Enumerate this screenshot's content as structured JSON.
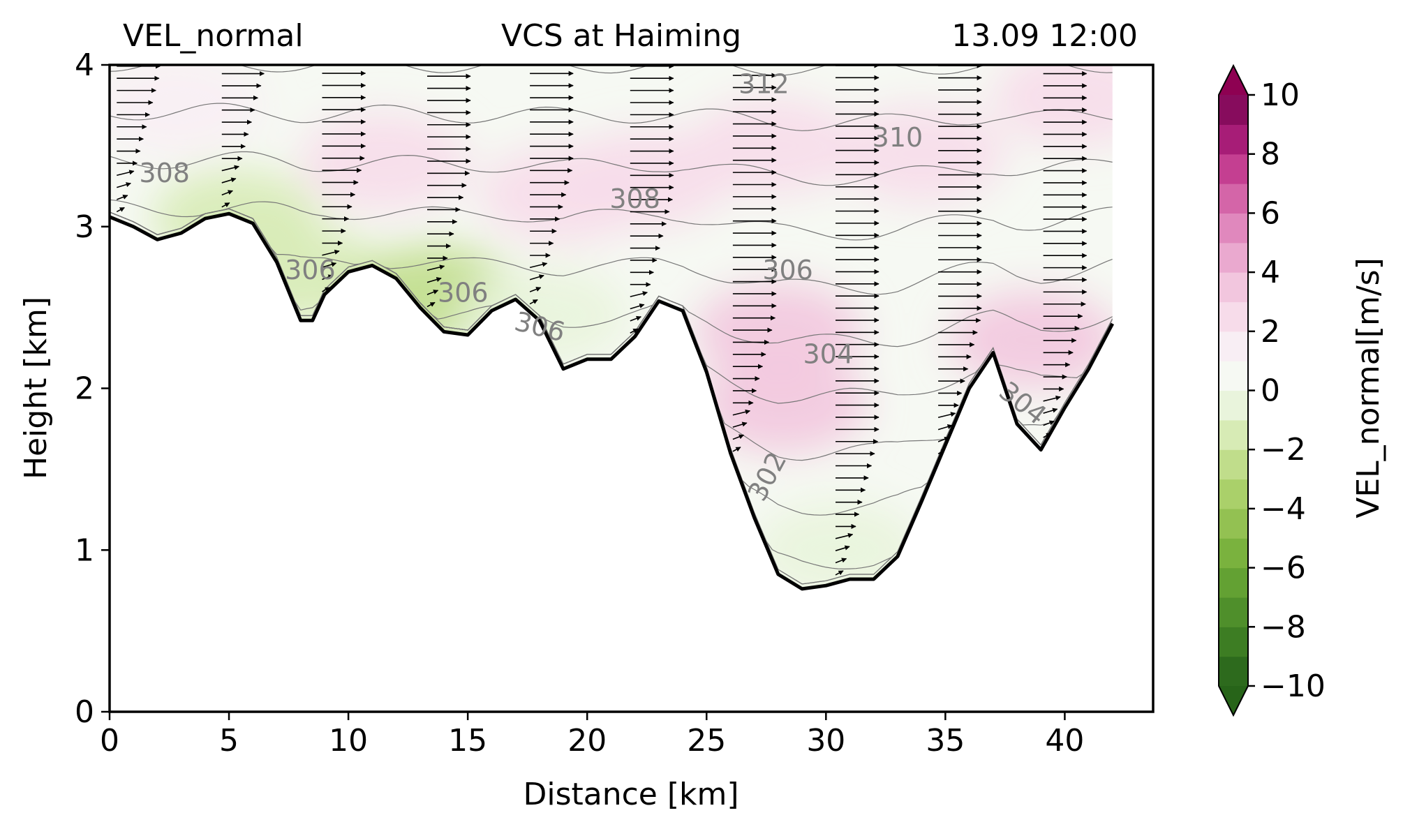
{
  "header": {
    "left": "VEL_normal",
    "center": "VCS at Haiming",
    "right": "13.09 12:00"
  },
  "chart_data": {
    "type": "heatmap",
    "title": "VCS at Haiming",
    "xlabel": "Distance [km]",
    "ylabel": "Height [km]",
    "xlim": [
      0,
      43.7
    ],
    "ylim": [
      0,
      4
    ],
    "x_ticks": [
      0,
      5,
      10,
      15,
      20,
      25,
      30,
      35,
      40
    ],
    "y_ticks": [
      0,
      1,
      2,
      3,
      4
    ],
    "colorbar": {
      "label": "VEL_normal[m/s]",
      "range": [
        -10,
        10
      ],
      "step": 1,
      "ticks": [
        -10,
        -8,
        -6,
        -4,
        -2,
        0,
        2,
        4,
        6,
        8,
        10
      ],
      "tick_labels": [
        "−10",
        "−8",
        "−6",
        "−4",
        "−2",
        "0",
        "2",
        "4",
        "6",
        "8",
        "10"
      ],
      "extend": "both",
      "colors": [
        "#2d6a1d",
        "#3d7d23",
        "#4f8f2b",
        "#63a133",
        "#7ab23e",
        "#93c152",
        "#aad06a",
        "#c0dd8b",
        "#d7ebb5",
        "#e9f4dc",
        "#f6f9f3",
        "#f8eef4",
        "#f7dcea",
        "#f2c6de",
        "#eaa9cf",
        "#e088bd",
        "#d465a8",
        "#c43f91",
        "#a71d77",
        "#870c5d"
      ],
      "under_color": "#276419",
      "over_color": "#8e0152"
    },
    "terrain": {
      "x": [
        0,
        1,
        2,
        3,
        4,
        5,
        6,
        7,
        8,
        8.5,
        9,
        10,
        11,
        12,
        13,
        14,
        15,
        16,
        17,
        18,
        19,
        20,
        21,
        22,
        23,
        24,
        25,
        26,
        27,
        28,
        29,
        30,
        31,
        32,
        33,
        34,
        35,
        36,
        37,
        38,
        39,
        40,
        41,
        42
      ],
      "y": [
        3.06,
        3.0,
        2.92,
        2.96,
        3.05,
        3.08,
        3.02,
        2.78,
        2.42,
        2.42,
        2.58,
        2.72,
        2.76,
        2.68,
        2.5,
        2.35,
        2.33,
        2.48,
        2.55,
        2.42,
        2.12,
        2.18,
        2.18,
        2.32,
        2.54,
        2.48,
        2.1,
        1.6,
        1.2,
        0.85,
        0.76,
        0.78,
        0.82,
        0.82,
        0.96,
        1.3,
        1.65,
        2.0,
        2.22,
        1.78,
        1.62,
        1.88,
        2.12,
        2.4
      ]
    },
    "field_patches": [
      {
        "x": 2.8,
        "y": 3.75,
        "value": 1
      },
      {
        "x": 5.3,
        "y": 3.05,
        "value": -2
      },
      {
        "x": 8.0,
        "y": 2.7,
        "value": -2
      },
      {
        "x": 13.6,
        "y": 2.58,
        "value": -3
      },
      {
        "x": 18.2,
        "y": 2.45,
        "value": -1
      },
      {
        "x": 11.5,
        "y": 3.4,
        "value": 2
      },
      {
        "x": 19.0,
        "y": 3.2,
        "value": 2
      },
      {
        "x": 22.5,
        "y": 3.3,
        "value": 2
      },
      {
        "x": 28.0,
        "y": 2.35,
        "value": 3
      },
      {
        "x": 28.2,
        "y": 1.9,
        "value": 3
      },
      {
        "x": 27.8,
        "y": 3.5,
        "value": 2
      },
      {
        "x": 34.0,
        "y": 3.45,
        "value": 2
      },
      {
        "x": 38.7,
        "y": 2.3,
        "value": 3
      },
      {
        "x": 30.5,
        "y": 1.0,
        "value": -1
      },
      {
        "x": 40.5,
        "y": 3.8,
        "value": 2
      }
    ],
    "isentrope_levels": [
      302,
      303,
      304,
      305,
      306,
      307,
      308,
      309,
      310,
      311,
      312,
      313
    ],
    "isentrope_labels": [
      {
        "text": "308",
        "x": 2.3,
        "y": 3.32,
        "rotation": 0
      },
      {
        "text": "306",
        "x": 8.4,
        "y": 2.72,
        "rotation": 0
      },
      {
        "text": "306",
        "x": 14.8,
        "y": 2.58,
        "rotation": 0
      },
      {
        "text": "306",
        "x": 18.0,
        "y": 2.37,
        "rotation": 14
      },
      {
        "text": "308",
        "x": 22.0,
        "y": 3.16,
        "rotation": 0
      },
      {
        "text": "306",
        "x": 28.4,
        "y": 2.72,
        "rotation": 0
      },
      {
        "text": "312",
        "x": 27.4,
        "y": 3.87,
        "rotation": 0
      },
      {
        "text": "310",
        "x": 33.0,
        "y": 3.54,
        "rotation": 0
      },
      {
        "text": "304",
        "x": 30.1,
        "y": 2.2,
        "rotation": 0
      },
      {
        "text": "302",
        "x": 27.6,
        "y": 1.45,
        "rotation": -62
      },
      {
        "text": "304",
        "x": 38.2,
        "y": 1.9,
        "rotation": 38
      }
    ],
    "wind_columns_km": [
      0.3,
      4.7,
      8.9,
      13.3,
      17.6,
      21.8,
      26.1,
      30.4,
      34.7,
      39.1
    ]
  }
}
